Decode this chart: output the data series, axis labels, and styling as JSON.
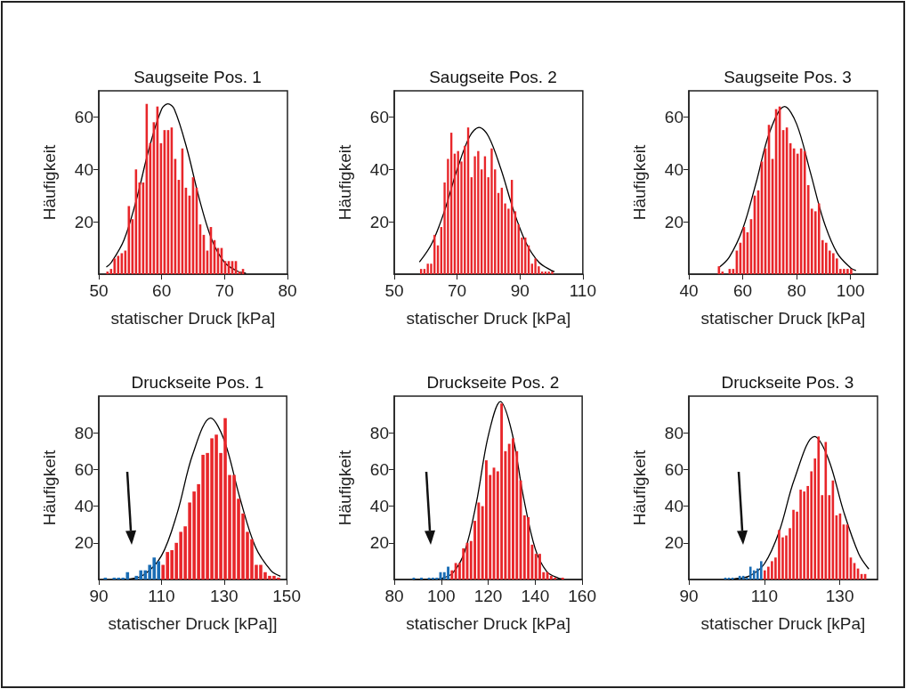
{
  "chart_data": [
    {
      "type": "histogram",
      "title": "Saugseite Pos. 1",
      "xlabel": "statischer Druck [kPa]",
      "ylabel": "Häufigkeit",
      "xlim": [
        50,
        80
      ],
      "xticks": [
        50,
        60,
        70,
        80
      ],
      "ylim": [
        0,
        70
      ],
      "yticks": [
        20,
        40,
        60
      ],
      "color": "#e8262a",
      "bins": [
        51.1,
        51.67,
        52.23,
        52.8,
        53.37,
        53.94,
        54.5,
        55.07,
        55.64,
        56.2,
        56.77,
        57.34,
        57.9,
        58.47,
        59.04,
        59.61,
        60.17,
        60.74,
        61.31,
        61.87,
        62.44,
        63.01,
        63.57,
        64.14,
        64.71,
        65.28,
        65.84,
        66.41,
        66.98,
        67.54,
        68.11,
        68.68,
        69.24,
        69.81,
        70.38,
        70.95,
        71.51,
        72.08,
        72.65,
        73.21
      ],
      "values": [
        1,
        2,
        6,
        7,
        8,
        9,
        26,
        21,
        40,
        35,
        35,
        65,
        50,
        58,
        64,
        50,
        55,
        55,
        56,
        44,
        36,
        48,
        33,
        30,
        37,
        33,
        19,
        15,
        9,
        18,
        13,
        10,
        10,
        5,
        5,
        5,
        5,
        1,
        2
      ],
      "series": [
        {
          "type": "line",
          "color": "#000000",
          "marker": "none",
          "x": [
            51.2,
            52,
            54,
            56,
            58,
            60,
            61,
            62,
            64,
            66,
            68,
            70,
            72,
            73.4
          ],
          "values": [
            2.7,
            4.5,
            13,
            28.6,
            48,
            63,
            65,
            63,
            48,
            28.6,
            13,
            4.5,
            1.2,
            0.4
          ]
        }
      ]
    },
    {
      "type": "histogram",
      "title": "Saugseite Pos. 2",
      "xlabel": "statischer Druck [kPa]",
      "ylabel": "Häufigkeit",
      "xlim": [
        50,
        110
      ],
      "xticks": [
        50,
        70,
        90,
        110
      ],
      "ylim": [
        0,
        70
      ],
      "yticks": [
        20,
        40,
        60
      ],
      "color": "#e8262a",
      "bins": [
        58.0,
        59.07,
        60.14,
        61.21,
        62.28,
        63.35,
        64.42,
        65.49,
        66.56,
        67.63,
        68.7,
        69.77,
        70.84,
        71.91,
        72.98,
        74.05,
        75.12,
        76.19,
        77.26,
        78.33,
        79.4,
        80.47,
        81.54,
        82.61,
        83.68,
        84.75,
        85.82,
        86.89,
        87.96,
        89.03,
        90.1,
        91.17,
        92.24,
        93.31,
        94.38,
        95.45,
        96.52,
        97.59,
        98.66,
        99.73,
        100.8
      ],
      "values": [
        2,
        2,
        4,
        4,
        15,
        11,
        18,
        35,
        44,
        54,
        46,
        47,
        43,
        49,
        56,
        37,
        45,
        47,
        40,
        45,
        37,
        48,
        40,
        31,
        33,
        27,
        25,
        36,
        24,
        19,
        14,
        14,
        11,
        4,
        6,
        3,
        1,
        1,
        1,
        1
      ],
      "series": [
        {
          "type": "line",
          "color": "#000000",
          "marker": "none",
          "x": [
            58,
            62,
            66,
            70,
            74,
            77,
            80,
            84,
            88,
            92,
            96,
            100,
            101
          ],
          "values": [
            4.6,
            11.8,
            24.2,
            39.9,
            52.6,
            56,
            52.6,
            39.9,
            24.2,
            11.8,
            4.6,
            1.4,
            1.0
          ]
        }
      ]
    },
    {
      "type": "histogram",
      "title": "Saugseite Pos. 3",
      "xlabel": "statischer Druck [kPa]",
      "ylabel": "Häufigkeit",
      "xlim": [
        40,
        110
      ],
      "xticks": [
        40,
        60,
        80,
        100
      ],
      "ylim": [
        0,
        70
      ],
      "yticks": [
        20,
        40,
        60
      ],
      "color": "#e8262a",
      "bins": [
        50.5,
        51.83,
        53.15,
        54.48,
        55.8,
        57.13,
        58.46,
        59.78,
        61.11,
        62.43,
        63.76,
        65.09,
        66.41,
        67.74,
        69.06,
        70.39,
        71.72,
        73.04,
        74.37,
        75.69,
        77.02,
        78.35,
        79.67,
        81.0,
        82.32,
        83.65,
        84.98,
        86.3,
        87.63,
        88.95,
        90.28,
        91.61,
        92.93,
        94.26,
        95.58,
        96.91,
        98.24,
        99.56,
        100.89
      ],
      "values": [
        3,
        1,
        0,
        2,
        2,
        9,
        12,
        18,
        16,
        21,
        30,
        32,
        43,
        48,
        57,
        44,
        63,
        64,
        55,
        56,
        50,
        48,
        46,
        48,
        47,
        34,
        25,
        24,
        27,
        13,
        12,
        9,
        8,
        6,
        2,
        2,
        2,
        2
      ],
      "series": [
        {
          "type": "line",
          "color": "#000000",
          "marker": "none",
          "x": [
            51,
            55,
            60,
            65,
            70,
            75.5,
            80,
            85,
            90,
            95,
            100,
            102
          ],
          "values": [
            2.4,
            6.5,
            17.3,
            35.1,
            54.3,
            64,
            57.3,
            39.2,
            20.4,
            8.1,
            2.4,
            1.4
          ]
        }
      ]
    },
    {
      "type": "histogram",
      "title": "Druckseite Pos. 1",
      "xlabel": "statischer Druck [kPa]]",
      "ylabel": "Häufigkeit",
      "xlim": [
        90,
        150
      ],
      "xticks": [
        90,
        110,
        130,
        150
      ],
      "ylim": [
        0,
        100
      ],
      "yticks": [
        20,
        40,
        60,
        80
      ],
      "bins": [
        91.37,
        92.79,
        94.21,
        95.62,
        97.04,
        98.46,
        99.88,
        101.3,
        102.71,
        104.13,
        105.55,
        106.97,
        108.39,
        109.8,
        111.22,
        112.64,
        114.06,
        115.48,
        116.89,
        118.31,
        119.73,
        121.15,
        122.57,
        123.98,
        125.4,
        126.82,
        128.24,
        129.66,
        131.07,
        132.49,
        133.91,
        135.33,
        136.75,
        138.16,
        139.58,
        141.0,
        142.42,
        143.84,
        145.25,
        146.67,
        148.09
      ],
      "values": [
        1,
        0,
        1,
        1,
        1,
        4,
        0,
        2,
        5,
        5,
        8,
        12,
        10,
        8,
        15,
        16,
        20,
        26,
        29,
        42,
        48,
        52,
        68,
        69,
        77,
        79,
        69,
        88,
        57,
        57,
        44,
        36,
        26,
        22,
        8,
        8,
        4,
        2,
        2,
        1
      ],
      "colors": [
        "#1a6db5",
        "#1a6db5",
        "#1a6db5",
        "#1a6db5",
        "#1a6db5",
        "#1a6db5",
        "#1a6db5",
        "#1a6db5",
        "#1a6db5",
        "#1a6db5",
        "#1a6db5",
        "#1a6db5",
        "#1a6db5",
        "#e8262a",
        "#e8262a",
        "#e8262a",
        "#e8262a",
        "#e8262a",
        "#e8262a",
        "#e8262a",
        "#e8262a",
        "#e8262a",
        "#e8262a",
        "#e8262a",
        "#e8262a",
        "#e8262a",
        "#e8262a",
        "#e8262a",
        "#e8262a",
        "#e8262a",
        "#e8262a",
        "#e8262a",
        "#e8262a",
        "#e8262a",
        "#e8262a",
        "#e8262a",
        "#e8262a",
        "#e8262a",
        "#e8262a",
        "#e8262a"
      ],
      "series": [
        {
          "type": "line",
          "color": "#000000",
          "marker": "none",
          "x": [
            98,
            104,
            110,
            115,
            120,
            125.7,
            130,
            135,
            140,
            145,
            148
          ],
          "values": [
            0.2,
            2.2,
            12.9,
            36,
            68.3,
            88,
            76.2,
            44.8,
            17.8,
            4.8,
            1.8
          ]
        }
      ]
    },
    {
      "type": "histogram",
      "title": "Druckseite Pos. 2",
      "xlabel": "statischer Druck [kPa]",
      "ylabel": "Häufigkeit",
      "xlim": [
        80,
        160
      ],
      "xticks": [
        80,
        100,
        120,
        140,
        160
      ],
      "ylim": [
        0,
        100
      ],
      "yticks": [
        20,
        40,
        60,
        80
      ],
      "bins": [
        87.5,
        89.13,
        90.75,
        92.38,
        94.0,
        95.63,
        97.25,
        98.88,
        100.5,
        102.13,
        103.75,
        105.38,
        107.0,
        108.63,
        110.25,
        111.88,
        113.5,
        115.13,
        116.75,
        118.38,
        120.0,
        121.63,
        123.25,
        124.88,
        126.5,
        128.13,
        129.75,
        131.38,
        133.0,
        134.63,
        136.25,
        137.88,
        139.5,
        141.13,
        142.75,
        144.38,
        146.0,
        147.63,
        149.25,
        150.88,
        152.5
      ],
      "values": [
        1,
        0,
        1,
        0,
        1,
        1,
        1,
        4,
        4,
        7,
        5,
        9,
        9,
        17,
        20,
        21,
        32,
        42,
        40,
        65,
        57,
        61,
        59,
        96,
        70,
        74,
        77,
        70,
        54,
        35,
        34,
        19,
        14,
        14,
        4,
        4,
        2,
        1,
        0,
        1
      ],
      "colors": [
        "#1a6db5",
        "#1a6db5",
        "#1a6db5",
        "#1a6db5",
        "#1a6db5",
        "#1a6db5",
        "#1a6db5",
        "#1a6db5",
        "#1a6db5",
        "#1a6db5",
        "#e8262a",
        "#e8262a",
        "#e8262a",
        "#e8262a",
        "#e8262a",
        "#e8262a",
        "#e8262a",
        "#e8262a",
        "#e8262a",
        "#e8262a",
        "#e8262a",
        "#e8262a",
        "#e8262a",
        "#e8262a",
        "#e8262a",
        "#e8262a",
        "#e8262a",
        "#e8262a",
        "#e8262a",
        "#e8262a",
        "#e8262a",
        "#e8262a",
        "#e8262a",
        "#e8262a",
        "#e8262a",
        "#e8262a",
        "#e8262a",
        "#e8262a",
        "#e8262a",
        "#e8262a"
      ],
      "series": [
        {
          "type": "line",
          "color": "#000000",
          "marker": "none",
          "x": [
            88,
            95,
            100,
            105,
            110,
            115,
            120,
            125.2,
            130,
            135,
            140,
            145,
            150,
            152
          ],
          "values": [
            0,
            0.1,
            0.6,
            3.7,
            15.3,
            42.2,
            78.2,
            97,
            80.7,
            45,
            16.8,
            4.2,
            0.7,
            0.3
          ]
        }
      ]
    },
    {
      "type": "histogram",
      "title": "Druckseite Pos. 3",
      "xlabel": "statischer Druck [kPa]",
      "ylabel": "Häufigkeit",
      "xlim": [
        90,
        140
      ],
      "xticks": [
        90,
        110,
        130
      ],
      "ylim": [
        0,
        100
      ],
      "yticks": [
        20,
        40,
        60,
        80
      ],
      "bins": [
        99.2,
        100.15,
        101.1,
        102.05,
        103.0,
        103.95,
        104.9,
        105.85,
        106.8,
        107.75,
        108.7,
        109.65,
        110.6,
        111.55,
        112.5,
        113.45,
        114.4,
        115.35,
        116.3,
        117.25,
        118.2,
        119.15,
        120.1,
        121.05,
        122.0,
        122.95,
        123.9,
        124.85,
        125.8,
        126.75,
        127.7,
        128.65,
        129.6,
        130.55,
        131.5,
        132.45,
        133.4,
        134.35,
        135.3,
        136.25,
        137.2
      ],
      "values": [
        1,
        1,
        1,
        0,
        2,
        2,
        1,
        7,
        5,
        6,
        10,
        5,
        7,
        10,
        12,
        27,
        23,
        24,
        28,
        38,
        37,
        49,
        48,
        51,
        59,
        66,
        78,
        46,
        75,
        46,
        54,
        35,
        36,
        30,
        30,
        12,
        9,
        6,
        3,
        3
      ],
      "colors": [
        "#1a6db5",
        "#1a6db5",
        "#1a6db5",
        "#1a6db5",
        "#1a6db5",
        "#1a6db5",
        "#1a6db5",
        "#1a6db5",
        "#1a6db5",
        "#1a6db5",
        "#1a6db5",
        "#e8262a",
        "#e8262a",
        "#e8262a",
        "#e8262a",
        "#e8262a",
        "#e8262a",
        "#e8262a",
        "#e8262a",
        "#e8262a",
        "#e8262a",
        "#e8262a",
        "#e8262a",
        "#e8262a",
        "#e8262a",
        "#e8262a",
        "#e8262a",
        "#e8262a",
        "#e8262a",
        "#e8262a",
        "#e8262a",
        "#e8262a",
        "#e8262a",
        "#e8262a",
        "#e8262a",
        "#e8262a",
        "#e8262a",
        "#e8262a",
        "#e8262a",
        "#e8262a"
      ],
      "series": [
        {
          "type": "line",
          "color": "#000000",
          "marker": "none",
          "x": [
            100.5,
            102,
            106,
            110,
            114,
            118,
            123.3,
            127,
            131,
            135,
            137.7
          ],
          "values": [
            0.1,
            0.3,
            1.9,
            8.5,
            26.5,
            54.9,
            78,
            65.7,
            37.2,
            14.1,
            5.7
          ]
        }
      ]
    }
  ]
}
